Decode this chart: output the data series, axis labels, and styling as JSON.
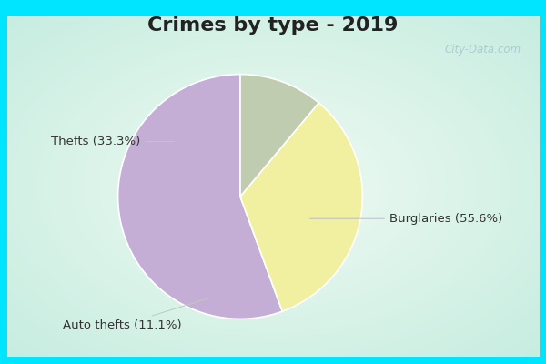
{
  "title": "Crimes by type - 2019",
  "slices": [
    {
      "label": "Burglaries (55.6%)",
      "value": 55.6,
      "color": "#c4aed6"
    },
    {
      "label": "Thefts (33.3%)",
      "value": 33.3,
      "color": "#f0f0a0"
    },
    {
      "label": "Auto thefts (11.1%)",
      "value": 11.1,
      "color": "#c0ccb0"
    }
  ],
  "border_color": "#00e5ff",
  "bg_center_color": "#eef7f2",
  "bg_edge_color": "#b8ede0",
  "title_fontsize": 16,
  "label_fontsize": 9.5,
  "watermark": "City-Data.com",
  "start_angle": 90,
  "border_width": 8
}
